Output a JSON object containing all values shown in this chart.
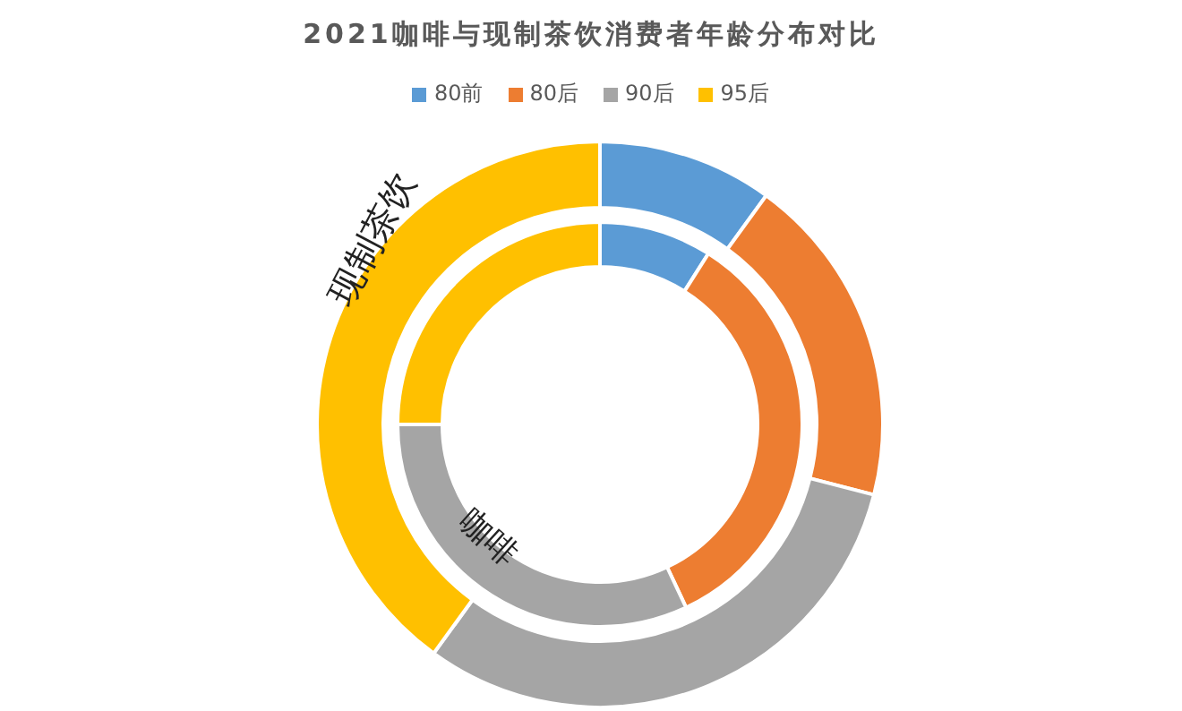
{
  "chart_data": {
    "type": "donut",
    "title": "2021咖啡与现制茶饮消费者年龄分布对比",
    "categories": [
      "80前",
      "80后",
      "90后",
      "95后"
    ],
    "colors": [
      "#5b9bd5",
      "#ed7d31",
      "#a5a5a5",
      "#ffc000"
    ],
    "legend": "top",
    "series": [
      {
        "name": "咖啡",
        "values": [
          9,
          34,
          32,
          25
        ]
      },
      {
        "name": "现制茶饮",
        "values": [
          10,
          19,
          31,
          40
        ]
      }
    ]
  }
}
